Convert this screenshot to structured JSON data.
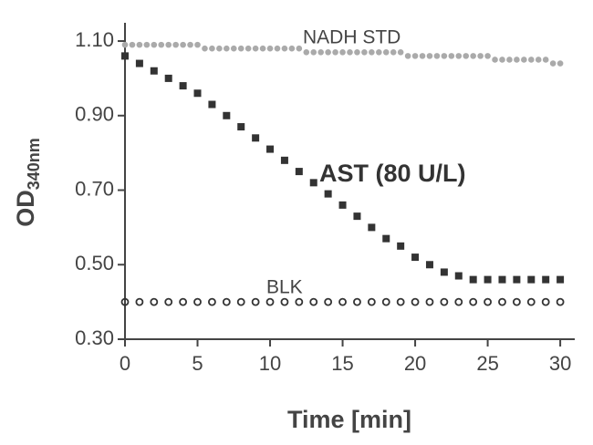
{
  "chart_data": {
    "type": "scatter",
    "x_label": "Time [min]",
    "y_label": "OD",
    "y_label_sub": "340nm",
    "xlim": [
      0,
      31
    ],
    "ylim": [
      0.3,
      1.15
    ],
    "xticks": [
      0,
      5,
      10,
      15,
      20,
      25,
      30
    ],
    "yticks": [
      {
        "value": 0.3,
        "label": "0.30"
      },
      {
        "value": 0.5,
        "label": "0.50"
      },
      {
        "value": 0.7,
        "label": "0.70"
      },
      {
        "value": 0.9,
        "label": "0.90"
      },
      {
        "value": 1.1,
        "label": "1.10"
      }
    ],
    "series": [
      {
        "name": "NADH  STD",
        "color": "#aaaaaa",
        "marker": "dot",
        "x": [
          0,
          0.5,
          1,
          1.5,
          2,
          2.5,
          3,
          3.5,
          4,
          4.5,
          5,
          5.5,
          6,
          6.5,
          7,
          7.5,
          8,
          8.5,
          9,
          9.5,
          10,
          10.5,
          11,
          11.5,
          12,
          12.5,
          13,
          13.5,
          14,
          14.5,
          15,
          15.5,
          16,
          16.5,
          17,
          17.5,
          18,
          18.5,
          19,
          19.5,
          20,
          20.5,
          21,
          21.5,
          22,
          22.5,
          23,
          23.5,
          24,
          24.5,
          25,
          25.5,
          26,
          26.5,
          27,
          27.5,
          28,
          28.5,
          29,
          29.5,
          30
        ],
        "values": [
          1.09,
          1.09,
          1.09,
          1.09,
          1.09,
          1.09,
          1.09,
          1.09,
          1.09,
          1.09,
          1.09,
          1.08,
          1.08,
          1.08,
          1.08,
          1.08,
          1.08,
          1.08,
          1.08,
          1.08,
          1.08,
          1.08,
          1.08,
          1.08,
          1.08,
          1.07,
          1.07,
          1.07,
          1.07,
          1.07,
          1.07,
          1.07,
          1.07,
          1.07,
          1.07,
          1.07,
          1.07,
          1.07,
          1.07,
          1.06,
          1.06,
          1.06,
          1.06,
          1.06,
          1.06,
          1.06,
          1.06,
          1.06,
          1.06,
          1.06,
          1.06,
          1.05,
          1.05,
          1.05,
          1.05,
          1.05,
          1.05,
          1.05,
          1.05,
          1.04,
          1.04
        ]
      },
      {
        "name": "AST (80 U/L)",
        "color": "#333333",
        "marker": "square",
        "x": [
          0,
          1,
          2,
          3,
          4,
          5,
          6,
          7,
          8,
          9,
          10,
          11,
          12,
          13,
          14,
          15,
          16,
          17,
          18,
          19,
          20,
          21,
          22,
          23,
          24,
          25,
          26,
          27,
          28,
          29,
          30
        ],
        "values": [
          1.06,
          1.04,
          1.02,
          1.0,
          0.98,
          0.96,
          0.93,
          0.9,
          0.87,
          0.84,
          0.81,
          0.78,
          0.75,
          0.72,
          0.69,
          0.66,
          0.63,
          0.6,
          0.57,
          0.55,
          0.52,
          0.5,
          0.48,
          0.47,
          0.46,
          0.46,
          0.46,
          0.46,
          0.46,
          0.46,
          0.46
        ]
      },
      {
        "name": "BLK",
        "color": "#333333",
        "marker": "circle",
        "x": [
          0,
          1,
          2,
          3,
          4,
          5,
          6,
          7,
          8,
          9,
          10,
          11,
          12,
          13,
          14,
          15,
          16,
          17,
          18,
          19,
          20,
          21,
          22,
          23,
          24,
          25,
          26,
          27,
          28,
          29,
          30
        ],
        "values": [
          0.4,
          0.4,
          0.4,
          0.4,
          0.4,
          0.4,
          0.4,
          0.4,
          0.4,
          0.4,
          0.4,
          0.4,
          0.4,
          0.4,
          0.4,
          0.4,
          0.4,
          0.4,
          0.4,
          0.4,
          0.4,
          0.4,
          0.4,
          0.4,
          0.4,
          0.4,
          0.4,
          0.4,
          0.4,
          0.4,
          0.4
        ]
      }
    ]
  }
}
